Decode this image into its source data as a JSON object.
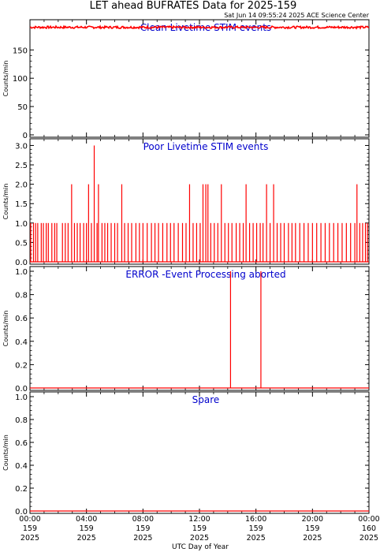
{
  "title": "LET ahead BUFRATES Data for 2025-159",
  "timestamp": "Sat Jun 14 09:55:24 2025 ACE Science Center",
  "xlabel": "UTC Day of Year",
  "colors": {
    "data": "#ff0000",
    "title": "#0000cc",
    "axis": "#000000"
  },
  "x_ticks": [
    {
      "l1": "00:00",
      "l2": "159",
      "l3": "2025"
    },
    {
      "l1": "04:00",
      "l2": "159",
      "l3": "2025"
    },
    {
      "l1": "08:00",
      "l2": "159",
      "l3": "2025"
    },
    {
      "l1": "12:00",
      "l2": "159",
      "l3": "2025"
    },
    {
      "l1": "16:00",
      "l2": "159",
      "l3": "2025"
    },
    {
      "l1": "20:00",
      "l2": "159",
      "l3": "2025"
    },
    {
      "l1": "00:00",
      "l2": "160",
      "l3": "2025"
    }
  ],
  "chart_data": [
    {
      "type": "line",
      "title": "Clean Livetime STIM events",
      "ylabel": "Counts/min",
      "xlim": [
        0,
        24
      ],
      "ylim": [
        0,
        195
      ],
      "yticks": [
        0,
        50,
        100,
        150
      ],
      "baseline": 190,
      "note": "noisy constant ~190 counts/min across full day"
    },
    {
      "type": "line",
      "title": "Poor Livetime STIM events",
      "ylabel": "Counts/min",
      "xlim": [
        0,
        24
      ],
      "ylim": [
        0,
        3.05
      ],
      "yticks": [
        "0.0",
        "0.5",
        "1.0",
        "1.5",
        "2.0",
        "2.5",
        "3.0"
      ],
      "ytick_values": [
        0,
        0.5,
        1,
        1.5,
        2,
        2.5,
        3
      ],
      "spikes": [
        {
          "x": 0.05,
          "y": 1
        },
        {
          "x": 0.25,
          "y": 1
        },
        {
          "x": 0.4,
          "y": 1
        },
        {
          "x": 0.55,
          "y": 1
        },
        {
          "x": 0.8,
          "y": 1
        },
        {
          "x": 0.95,
          "y": 1
        },
        {
          "x": 1.15,
          "y": 1
        },
        {
          "x": 1.3,
          "y": 1
        },
        {
          "x": 1.55,
          "y": 1
        },
        {
          "x": 1.75,
          "y": 1
        },
        {
          "x": 1.9,
          "y": 1
        },
        {
          "x": 2.3,
          "y": 1
        },
        {
          "x": 2.5,
          "y": 1
        },
        {
          "x": 2.7,
          "y": 1
        },
        {
          "x": 2.95,
          "y": 2
        },
        {
          "x": 3.15,
          "y": 1
        },
        {
          "x": 3.35,
          "y": 1
        },
        {
          "x": 3.55,
          "y": 1
        },
        {
          "x": 3.8,
          "y": 1
        },
        {
          "x": 4.0,
          "y": 1
        },
        {
          "x": 4.15,
          "y": 2
        },
        {
          "x": 4.35,
          "y": 1
        },
        {
          "x": 4.55,
          "y": 3
        },
        {
          "x": 4.75,
          "y": 1
        },
        {
          "x": 4.85,
          "y": 2
        },
        {
          "x": 5.1,
          "y": 1
        },
        {
          "x": 5.3,
          "y": 1
        },
        {
          "x": 5.5,
          "y": 1
        },
        {
          "x": 5.75,
          "y": 1
        },
        {
          "x": 6.0,
          "y": 1
        },
        {
          "x": 6.2,
          "y": 1
        },
        {
          "x": 6.5,
          "y": 2
        },
        {
          "x": 6.7,
          "y": 1
        },
        {
          "x": 6.95,
          "y": 1
        },
        {
          "x": 7.2,
          "y": 1
        },
        {
          "x": 7.5,
          "y": 1
        },
        {
          "x": 7.75,
          "y": 1
        },
        {
          "x": 8.0,
          "y": 1
        },
        {
          "x": 8.3,
          "y": 1
        },
        {
          "x": 8.6,
          "y": 1
        },
        {
          "x": 8.85,
          "y": 1
        },
        {
          "x": 9.1,
          "y": 1
        },
        {
          "x": 9.4,
          "y": 1
        },
        {
          "x": 9.7,
          "y": 1
        },
        {
          "x": 9.95,
          "y": 1
        },
        {
          "x": 10.2,
          "y": 1
        },
        {
          "x": 10.5,
          "y": 1
        },
        {
          "x": 10.8,
          "y": 1
        },
        {
          "x": 11.05,
          "y": 1
        },
        {
          "x": 11.3,
          "y": 2
        },
        {
          "x": 11.55,
          "y": 1
        },
        {
          "x": 11.8,
          "y": 1
        },
        {
          "x": 12.05,
          "y": 1
        },
        {
          "x": 12.25,
          "y": 2
        },
        {
          "x": 12.45,
          "y": 2
        },
        {
          "x": 12.6,
          "y": 2
        },
        {
          "x": 12.8,
          "y": 1
        },
        {
          "x": 13.05,
          "y": 1
        },
        {
          "x": 13.3,
          "y": 1
        },
        {
          "x": 13.55,
          "y": 2
        },
        {
          "x": 13.8,
          "y": 1
        },
        {
          "x": 14.05,
          "y": 1
        },
        {
          "x": 14.3,
          "y": 1
        },
        {
          "x": 14.6,
          "y": 1
        },
        {
          "x": 14.85,
          "y": 1
        },
        {
          "x": 15.1,
          "y": 1
        },
        {
          "x": 15.3,
          "y": 2
        },
        {
          "x": 15.55,
          "y": 1
        },
        {
          "x": 15.8,
          "y": 1
        },
        {
          "x": 16.05,
          "y": 1
        },
        {
          "x": 16.3,
          "y": 1
        },
        {
          "x": 16.5,
          "y": 1
        },
        {
          "x": 16.75,
          "y": 2
        },
        {
          "x": 17.0,
          "y": 1
        },
        {
          "x": 17.25,
          "y": 2
        },
        {
          "x": 17.5,
          "y": 1
        },
        {
          "x": 17.75,
          "y": 1
        },
        {
          "x": 18.0,
          "y": 1
        },
        {
          "x": 18.3,
          "y": 1
        },
        {
          "x": 18.55,
          "y": 1
        },
        {
          "x": 18.8,
          "y": 1
        },
        {
          "x": 19.1,
          "y": 1
        },
        {
          "x": 19.4,
          "y": 1
        },
        {
          "x": 19.7,
          "y": 1
        },
        {
          "x": 20.0,
          "y": 1
        },
        {
          "x": 20.3,
          "y": 1
        },
        {
          "x": 20.6,
          "y": 1
        },
        {
          "x": 20.9,
          "y": 1
        },
        {
          "x": 21.2,
          "y": 1
        },
        {
          "x": 21.5,
          "y": 1
        },
        {
          "x": 21.8,
          "y": 1
        },
        {
          "x": 22.1,
          "y": 1
        },
        {
          "x": 22.4,
          "y": 1
        },
        {
          "x": 22.7,
          "y": 1
        },
        {
          "x": 23.0,
          "y": 1
        },
        {
          "x": 23.15,
          "y": 2
        },
        {
          "x": 23.35,
          "y": 1
        },
        {
          "x": 23.55,
          "y": 1
        },
        {
          "x": 23.75,
          "y": 1
        },
        {
          "x": 23.9,
          "y": 1
        }
      ]
    },
    {
      "type": "line",
      "title": "ERROR -Event Processing aborted",
      "ylabel": "Counts/min",
      "xlim": [
        0,
        24
      ],
      "ylim": [
        0,
        1.0
      ],
      "yticks": [
        "0.0",
        "0.2",
        "0.4",
        "0.6",
        "0.8",
        "1.0"
      ],
      "ytick_values": [
        0,
        0.2,
        0.4,
        0.6,
        0.8,
        1.0
      ],
      "spikes": [
        {
          "x": 14.2,
          "y": 1
        },
        {
          "x": 16.35,
          "y": 1
        }
      ]
    },
    {
      "type": "line",
      "title": "Spare",
      "ylabel": "Counts/min",
      "xlim": [
        0,
        24
      ],
      "ylim": [
        0,
        1.0
      ],
      "yticks": [
        "0.0",
        "0.2",
        "0.4",
        "0.6",
        "0.8",
        "1.0"
      ],
      "ytick_values": [
        0,
        0.2,
        0.4,
        0.6,
        0.8,
        1.0
      ],
      "spikes": []
    }
  ]
}
